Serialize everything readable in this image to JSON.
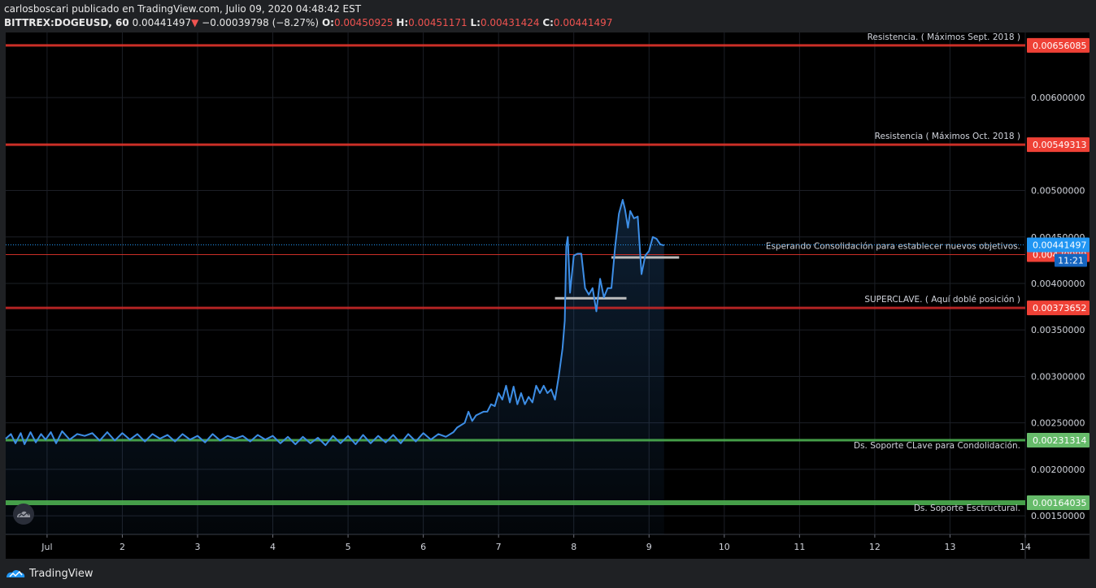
{
  "header": {
    "author": "carlosboscari",
    "published": "publicado en TradingView.com, Julio 09, 2020 04:48:42 EST",
    "symbol": "BITTREX:DOGEUSD, 60",
    "last": "0.00441497",
    "change_arrow": "▼",
    "change": "−0.00039798 (−8.27%)",
    "o_label": "O:",
    "o_value": "0.00450925",
    "h_label": "H:",
    "h_value": "0.00451171",
    "l_label": "L:",
    "l_value": "0.00431424",
    "c_label": "C:",
    "c_value": "0.00441497"
  },
  "footer": {
    "brand": "TradingView",
    "logo_icon": "tradingview-logo-icon"
  },
  "chart_icon": "tradingview-cloud-icon",
  "colors": {
    "background": "#000000",
    "grid": "#1c1f26",
    "line": "#3d8ee6",
    "resistance": "#e0342b",
    "support": "#4caf50",
    "price_tag": "#2196f3",
    "consolidation": "#bdbdbd"
  },
  "chart_data": {
    "type": "line",
    "title": "",
    "xlabel": "",
    "ylabel": "",
    "x_ticks": [
      "Jul",
      "2",
      "3",
      "4",
      "5",
      "6",
      "7",
      "8",
      "9",
      "10",
      "11",
      "12",
      "13",
      "14"
    ],
    "x_range": [
      0.45,
      14.0
    ],
    "y_ticks": [
      "0.00150000",
      "0.00200000",
      "0.00250000",
      "0.00300000",
      "0.00350000",
      "0.00400000",
      "0.00450000",
      "0.00500000",
      "0.00600000"
    ],
    "ylim": [
      0.0013,
      0.0067
    ],
    "grid": true,
    "series": [
      {
        "x": [
          0.45,
          0.52,
          0.58,
          0.65,
          0.7,
          0.78,
          0.85,
          0.92,
          0.98,
          1.05,
          1.12,
          1.2,
          1.3,
          1.4,
          1.5,
          1.6,
          1.7,
          1.8,
          1.9,
          2.0,
          2.1,
          2.2,
          2.3,
          2.4,
          2.5,
          2.6,
          2.7,
          2.8,
          2.9,
          3.0,
          3.1,
          3.2,
          3.3,
          3.4,
          3.5,
          3.6,
          3.7,
          3.8,
          3.9,
          4.0,
          4.1,
          4.2,
          4.3,
          4.4,
          4.5,
          4.6,
          4.7,
          4.8,
          4.9,
          5.0,
          5.1,
          5.2,
          5.3,
          5.4,
          5.5,
          5.6,
          5.7,
          5.8,
          5.9,
          6.0,
          6.1,
          6.2,
          6.3,
          6.4,
          6.45,
          6.55,
          6.6,
          6.65,
          6.7,
          6.8,
          6.85,
          6.9,
          6.95,
          7.0,
          7.05,
          7.1,
          7.15,
          7.2,
          7.25,
          7.3,
          7.35,
          7.4,
          7.45,
          7.5,
          7.55,
          7.6,
          7.65,
          7.7,
          7.75,
          7.8,
          7.85,
          7.88,
          7.9,
          7.92,
          7.95,
          8.0,
          8.05,
          8.1,
          8.15,
          8.2,
          8.25,
          8.3,
          8.35,
          8.4,
          8.45,
          8.5,
          8.55,
          8.6,
          8.65,
          8.68,
          8.72,
          8.75,
          8.8,
          8.85,
          8.9,
          8.95,
          9.0,
          9.05,
          9.1,
          9.15,
          9.2
        ],
        "values": [
          0.00233,
          0.00238,
          0.00228,
          0.00239,
          0.00227,
          0.0024,
          0.00229,
          0.00238,
          0.00232,
          0.0024,
          0.00228,
          0.00241,
          0.00232,
          0.00238,
          0.00236,
          0.00239,
          0.00231,
          0.0024,
          0.00231,
          0.00239,
          0.00232,
          0.00238,
          0.0023,
          0.00238,
          0.00233,
          0.00237,
          0.0023,
          0.00238,
          0.00232,
          0.00236,
          0.00229,
          0.00238,
          0.00231,
          0.00236,
          0.00233,
          0.00236,
          0.0023,
          0.00237,
          0.00232,
          0.00236,
          0.00228,
          0.00235,
          0.00227,
          0.00235,
          0.00228,
          0.00234,
          0.00226,
          0.00236,
          0.00228,
          0.00236,
          0.00227,
          0.00237,
          0.00228,
          0.00236,
          0.00229,
          0.00237,
          0.00228,
          0.00238,
          0.0023,
          0.00239,
          0.00232,
          0.00238,
          0.00235,
          0.0024,
          0.00245,
          0.0025,
          0.00262,
          0.00252,
          0.00258,
          0.00262,
          0.00262,
          0.0027,
          0.00268,
          0.00282,
          0.00275,
          0.0029,
          0.00272,
          0.00289,
          0.0027,
          0.00282,
          0.0027,
          0.00278,
          0.00272,
          0.0029,
          0.00282,
          0.0029,
          0.00282,
          0.00286,
          0.00275,
          0.003,
          0.0033,
          0.0036,
          0.0044,
          0.0045,
          0.0039,
          0.0043,
          0.00432,
          0.00432,
          0.00395,
          0.00388,
          0.00395,
          0.0037,
          0.00405,
          0.00385,
          0.00395,
          0.00395,
          0.0044,
          0.00475,
          0.0049,
          0.0048,
          0.0046,
          0.00478,
          0.0047,
          0.00472,
          0.0041,
          0.0043,
          0.00435,
          0.0045,
          0.00448,
          0.00442,
          0.00441
        ]
      }
    ],
    "horizontal_levels": [
      {
        "label": "Resistencia. ( Máximos Sept. 2018 )",
        "value": 0.00656085,
        "tag": "0.00656085",
        "kind": "resistance"
      },
      {
        "label": "Resistencia ( Máximos Oct. 2018 )",
        "value": 0.00549313,
        "tag": "0.00549313",
        "kind": "resistance"
      },
      {
        "label": "Esperando Consolidación para establecer nuevos objetivos.",
        "value": 0.00430999,
        "tag": "0.00430999",
        "kind": "resistance-thin"
      },
      {
        "label": "SUPERCLAVE.  ( Aquí doblé posición )",
        "value": 0.00373652,
        "tag": "0.00373652",
        "kind": "resistance"
      },
      {
        "label": "Ds. Soporte CLave para Condolidación.",
        "value": 0.00231314,
        "tag": "0.00231314",
        "kind": "support"
      },
      {
        "label": "Ds. Soporte Esctructural.",
        "value": 0.00164035,
        "tag": "0.00164035",
        "kind": "support-thick"
      }
    ],
    "current_price": {
      "value": 0.00441497,
      "tag": "0.00441497",
      "countdown": "11:21"
    },
    "consolidation_segments": [
      {
        "x1": 7.75,
        "x2": 8.7,
        "y": 0.00384
      },
      {
        "x1": 8.5,
        "x2": 9.4,
        "y": 0.00428
      }
    ]
  }
}
